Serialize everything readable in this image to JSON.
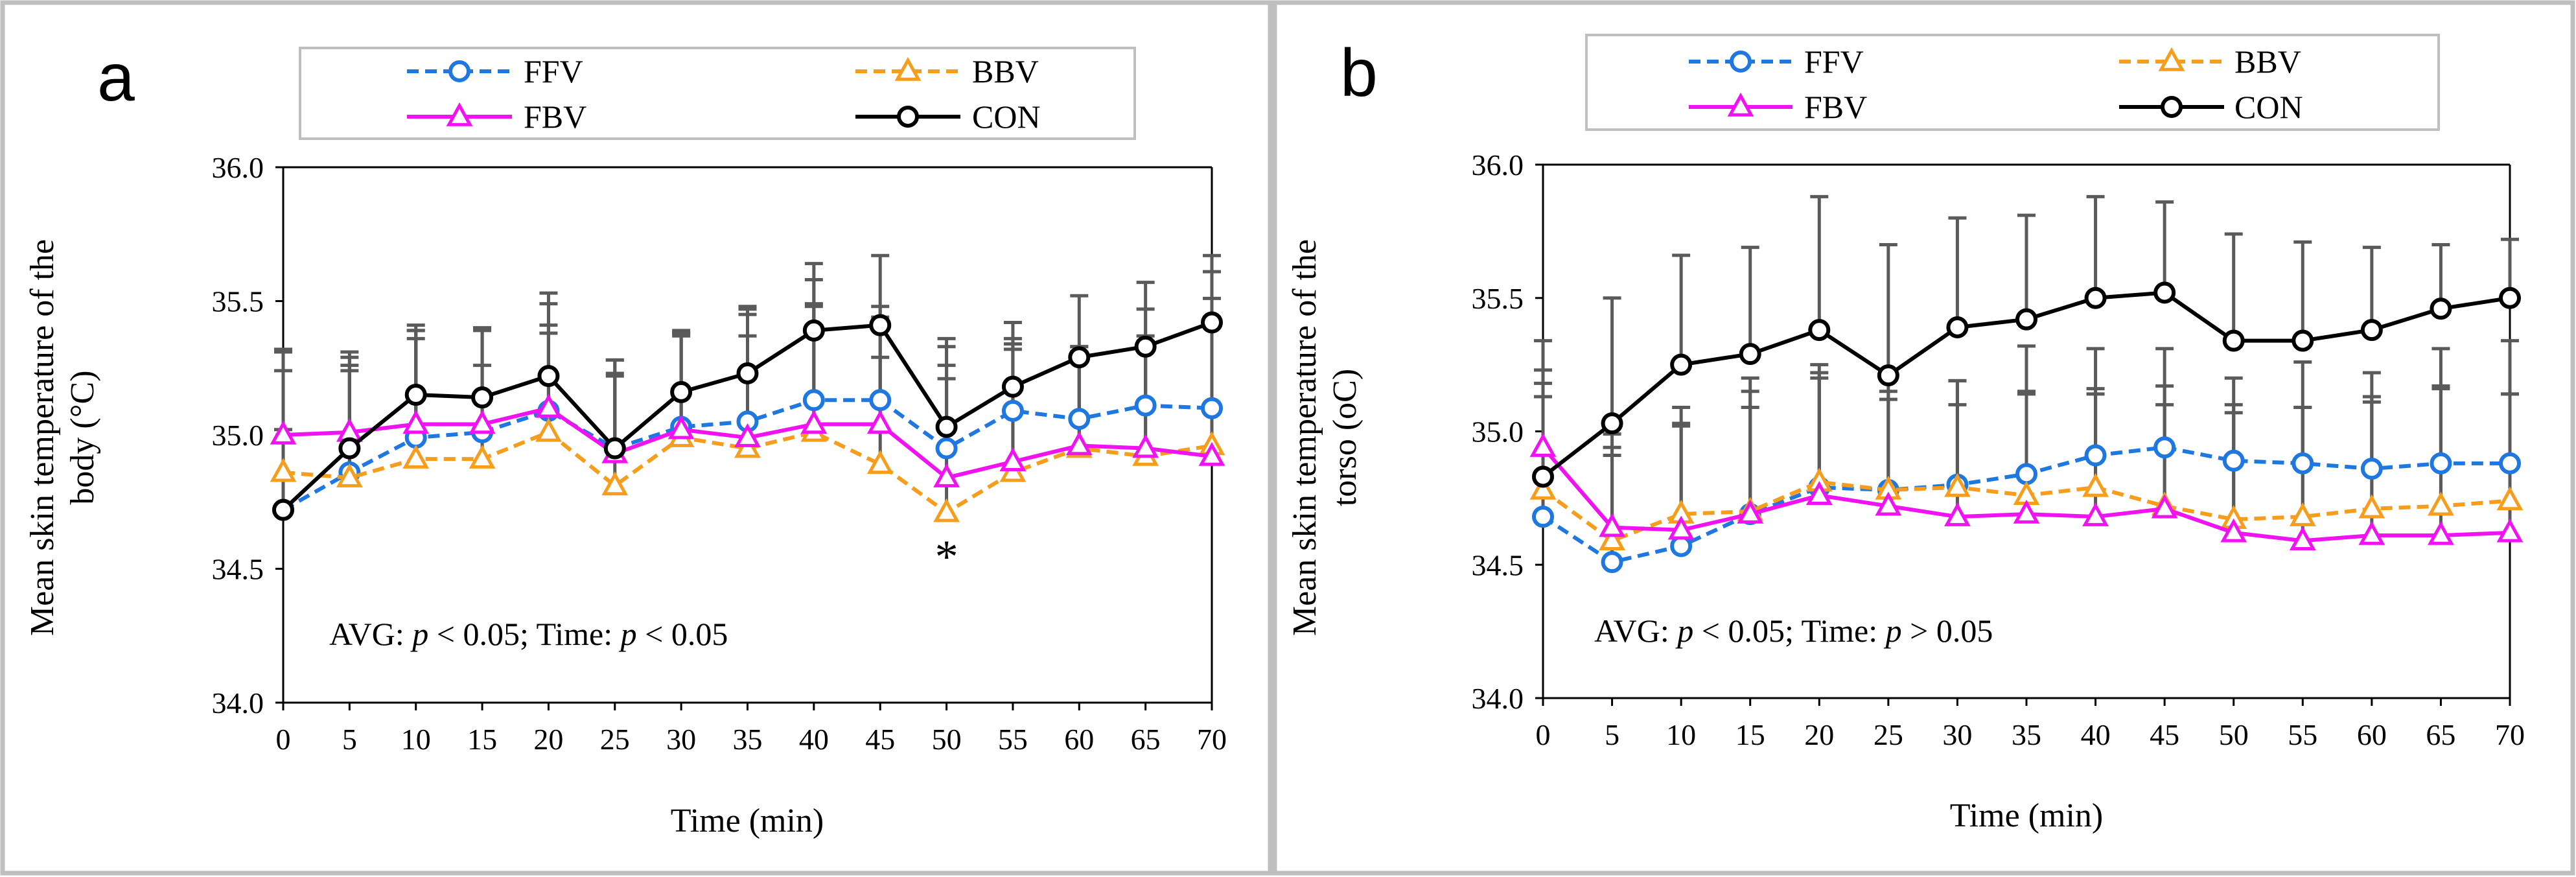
{
  "figure": {
    "series_styles": [
      {
        "name": "FFV",
        "color": "#1f77e0",
        "dash": "dashed",
        "marker": "circle"
      },
      {
        "name": "BBV",
        "color": "#f59d1c",
        "dash": "dashed",
        "marker": "triangle"
      },
      {
        "name": "FBV",
        "color": "#f012f0",
        "dash": "solid",
        "marker": "triangle"
      },
      {
        "name": "CON",
        "color": "#000000",
        "dash": "solid",
        "marker": "circle"
      }
    ],
    "error_bar_color": "#5a5a5a",
    "border_color": "#bfbfbf"
  },
  "chart_data": [
    {
      "type": "line",
      "panel_label": "a",
      "title": "",
      "xlabel": "Time (min)",
      "ylabel_line1": "Mean skin temperature of the",
      "ylabel_line2": "body (°C)",
      "ylim": [
        34.0,
        36.0
      ],
      "yticks": [
        "34.0",
        "34.5",
        "35.0",
        "35.5",
        "36.0"
      ],
      "x": [
        0,
        5,
        10,
        15,
        20,
        25,
        30,
        35,
        40,
        45,
        50,
        55,
        60,
        65,
        70
      ],
      "legend_order": [
        "FFV",
        "BBV",
        "FBV",
        "CON"
      ],
      "series": [
        {
          "name": "FFV",
          "values": [
            34.72,
            34.86,
            34.99,
            35.01,
            35.09,
            34.95,
            35.03,
            35.05,
            35.13,
            35.13,
            34.95,
            35.09,
            35.06,
            35.11,
            35.1
          ],
          "errors": [
            0.52,
            0.4,
            0.4,
            0.38,
            0.4,
            0.33,
            0.34,
            0.4,
            0.45,
            0.35,
            0.38,
            0.27,
            0.27,
            0.26,
            0.51
          ]
        },
        {
          "name": "BBV",
          "values": [
            34.86,
            34.84,
            34.91,
            34.91,
            35.01,
            34.81,
            34.99,
            34.95,
            35.01,
            34.89,
            34.71,
            34.86,
            34.95,
            34.92,
            34.96
          ],
          "errors": [
            0.45,
            0.4,
            0.45,
            0.35,
            0.4,
            0.42,
            0.4,
            0.42,
            0.48,
            0.4,
            0.5,
            0.46,
            0.38,
            0.55,
            0.55
          ]
        },
        {
          "name": "FBV",
          "values": [
            35.0,
            35.01,
            35.04,
            35.04,
            35.1,
            34.93,
            35.02,
            34.99,
            35.04,
            35.04,
            34.84,
            34.9,
            34.96,
            34.95,
            34.92
          ],
          "errors": [
            0.32,
            0.28,
            0.35,
            0.36,
            0.28,
            0.29,
            0.36,
            0.48,
            0.44,
            0.4,
            0.42,
            0.44,
            0.35,
            0.4,
            0.52
          ]
        },
        {
          "name": "CON",
          "values": [
            34.72,
            34.95,
            35.15,
            35.14,
            35.22,
            34.95,
            35.16,
            35.23,
            35.39,
            35.41,
            35.03,
            35.18,
            35.29,
            35.33,
            35.42
          ],
          "errors": [
            0.3,
            0.36,
            0.26,
            0.26,
            0.31,
            0.33,
            0.22,
            0.25,
            0.25,
            0.26,
            0.33,
            0.24,
            0.23,
            0.24,
            0.25
          ]
        }
      ],
      "annotation_prefix": "AVG: ",
      "annotation_p1": "p",
      "annotation_mid": " < 0.05; Time: ",
      "annotation_p2": "p",
      "annotation_suffix": " < 0.05",
      "significance_marker": "*",
      "significance_x": 50
    },
    {
      "type": "line",
      "panel_label": "b",
      "title": "",
      "xlabel": "Time (min)",
      "ylabel_line1": "Mean skin temperature of the",
      "ylabel_line2": "torso  (oC)",
      "ylim": [
        34.0,
        36.0
      ],
      "yticks": [
        "34.0",
        "34.5",
        "35.0",
        "35.5",
        "36.0"
      ],
      "x": [
        0,
        5,
        10,
        15,
        20,
        25,
        30,
        35,
        40,
        45,
        50,
        55,
        60,
        65,
        70
      ],
      "legend_order": [
        "FFV",
        "BBV",
        "FBV",
        "CON"
      ],
      "series": [
        {
          "name": "FFV",
          "values": [
            34.68,
            34.51,
            34.57,
            34.69,
            34.79,
            34.78,
            34.8,
            34.84,
            34.91,
            34.94,
            34.89,
            34.88,
            34.86,
            34.88,
            34.88
          ],
          "errors": [
            0.5,
            0.4,
            0.45,
            0.51,
            0.46,
            0.43,
            0.39,
            0.48,
            0.4,
            0.37,
            0.31,
            0.38,
            0.36,
            0.43,
            0.46
          ]
        },
        {
          "name": "BBV",
          "values": [
            34.78,
            34.59,
            34.69,
            34.7,
            34.81,
            34.78,
            34.79,
            34.76,
            34.79,
            34.72,
            34.67,
            34.68,
            34.71,
            34.72,
            34.74
          ],
          "errors": [
            0.45,
            0.35,
            0.4,
            0.45,
            0.41,
            0.37,
            0.4,
            0.38,
            0.37,
            0.38,
            0.4,
            0.41,
            0.4,
            0.45,
            0.4
          ]
        },
        {
          "name": "FBV",
          "values": [
            34.94,
            34.64,
            34.63,
            34.69,
            34.76,
            34.72,
            34.68,
            34.69,
            34.68,
            34.71,
            34.62,
            34.59,
            34.61,
            34.61,
            34.62
          ],
          "errors": [
            0.4,
            0.35,
            0.4,
            0.4,
            0.44,
            0.4,
            0.42,
            0.46,
            0.46,
            0.46,
            0.48,
            0.5,
            0.52,
            0.55,
            0.52
          ]
        },
        {
          "name": "CON",
          "values": [
            34.83,
            35.03,
            35.25,
            35.29,
            35.38,
            35.21,
            35.39,
            35.42,
            35.5,
            35.52,
            35.34,
            35.34,
            35.38,
            35.46,
            35.5
          ],
          "errors": [
            0.3,
            0.47,
            0.41,
            0.4,
            0.5,
            0.49,
            0.41,
            0.39,
            0.38,
            0.34,
            0.4,
            0.37,
            0.31,
            0.24,
            0.22
          ]
        }
      ],
      "annotation_prefix": "AVG: ",
      "annotation_p1": "p",
      "annotation_mid": " < 0.05; Time: ",
      "annotation_p2": "p",
      "annotation_suffix": " > 0.05",
      "significance_marker": "",
      "significance_x": null
    }
  ]
}
